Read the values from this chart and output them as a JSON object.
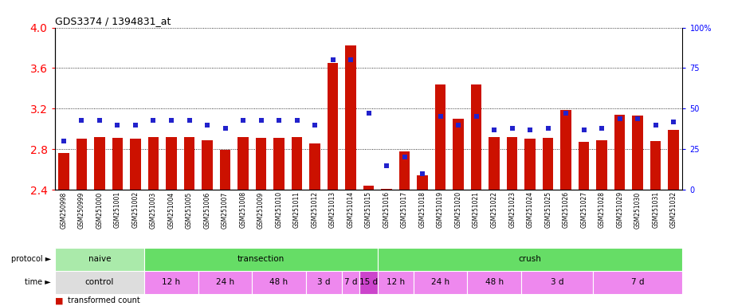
{
  "title": "GDS3374 / 1394831_at",
  "samples": [
    "GSM250998",
    "GSM250999",
    "GSM251000",
    "GSM251001",
    "GSM251002",
    "GSM251003",
    "GSM251004",
    "GSM251005",
    "GSM251006",
    "GSM251007",
    "GSM251008",
    "GSM251009",
    "GSM251010",
    "GSM251011",
    "GSM251012",
    "GSM251013",
    "GSM251014",
    "GSM251015",
    "GSM251016",
    "GSM251017",
    "GSM251018",
    "GSM251019",
    "GSM251020",
    "GSM251021",
    "GSM251022",
    "GSM251023",
    "GSM251024",
    "GSM251025",
    "GSM251026",
    "GSM251027",
    "GSM251028",
    "GSM251029",
    "GSM251030",
    "GSM251031",
    "GSM251032"
  ],
  "bar_values": [
    2.76,
    2.9,
    2.92,
    2.91,
    2.9,
    2.92,
    2.92,
    2.92,
    2.89,
    2.79,
    2.92,
    2.91,
    2.91,
    2.92,
    2.86,
    3.65,
    3.82,
    2.44,
    2.41,
    2.78,
    2.54,
    3.44,
    3.1,
    3.44,
    2.92,
    2.92,
    2.9,
    2.91,
    3.19,
    2.87,
    2.89,
    3.14,
    3.13,
    2.88,
    2.99
  ],
  "percentile_values": [
    30,
    43,
    43,
    40,
    40,
    43,
    43,
    43,
    40,
    38,
    43,
    43,
    43,
    43,
    40,
    80,
    80,
    47,
    15,
    20,
    10,
    45,
    40,
    45,
    37,
    38,
    37,
    38,
    47,
    37,
    38,
    44,
    44,
    40,
    42
  ],
  "ylim_left": [
    2.4,
    4.0
  ],
  "ylim_right": [
    0,
    100
  ],
  "yticks_left": [
    2.4,
    2.8,
    3.2,
    3.6,
    4.0
  ],
  "yticks_right": [
    0,
    25,
    50,
    75,
    100
  ],
  "ytick_labels_right": [
    "0",
    "25",
    "50",
    "75",
    "100%"
  ],
  "bar_color": "#cc1100",
  "marker_color": "#2222cc",
  "grid_color": "#000000",
  "proto_groups": [
    {
      "label": "naive",
      "start": 0,
      "end": 4,
      "color": "#aaeaaa"
    },
    {
      "label": "transection",
      "start": 5,
      "end": 17,
      "color": "#66dd66"
    },
    {
      "label": "crush",
      "start": 18,
      "end": 34,
      "color": "#66dd66"
    }
  ],
  "time_groups": [
    {
      "label": "control",
      "start": 0,
      "end": 4,
      "color": "#dddddd"
    },
    {
      "label": "12 h",
      "start": 5,
      "end": 7,
      "color": "#ee88ee"
    },
    {
      "label": "24 h",
      "start": 8,
      "end": 10,
      "color": "#ee88ee"
    },
    {
      "label": "48 h",
      "start": 11,
      "end": 13,
      "color": "#ee88ee"
    },
    {
      "label": "3 d",
      "start": 14,
      "end": 15,
      "color": "#ee88ee"
    },
    {
      "label": "7 d",
      "start": 16,
      "end": 16,
      "color": "#ee88ee"
    },
    {
      "label": "15 d",
      "start": 17,
      "end": 17,
      "color": "#cc44cc"
    },
    {
      "label": "12 h",
      "start": 18,
      "end": 19,
      "color": "#ee88ee"
    },
    {
      "label": "24 h",
      "start": 20,
      "end": 22,
      "color": "#ee88ee"
    },
    {
      "label": "48 h",
      "start": 23,
      "end": 25,
      "color": "#ee88ee"
    },
    {
      "label": "3 d",
      "start": 26,
      "end": 29,
      "color": "#ee88ee"
    },
    {
      "label": "7 d",
      "start": 30,
      "end": 34,
      "color": "#ee88ee"
    }
  ]
}
